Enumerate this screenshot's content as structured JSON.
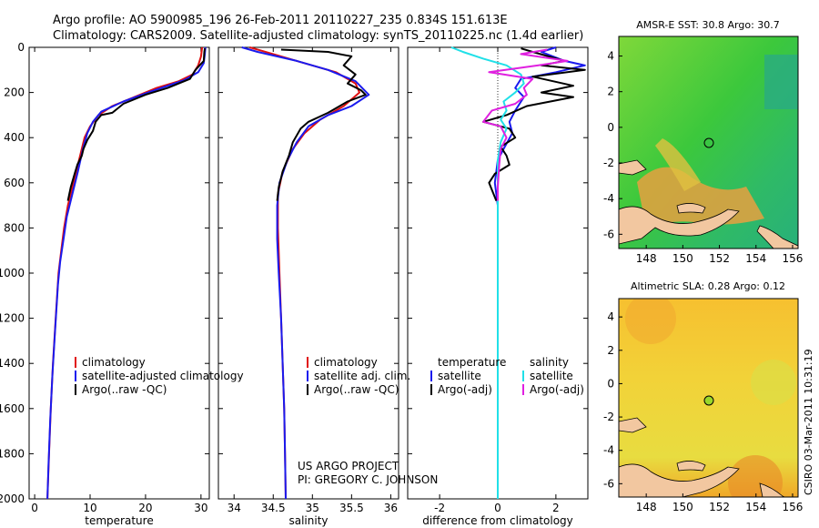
{
  "header": {
    "line1": "Argo profile: AO 5900985_196 26-Feb-2011 20110227_235 0.834S 151.613E",
    "line2": "Climatology: CARS2009. Satellite-adjusted climatology: synTS_20110225.nc (1.4d earlier)"
  },
  "credit": {
    "line1": "US ARGO PROJECT",
    "line2": "PI: GREGORY C. JOHNSON"
  },
  "side_stamp": "CSIRO 03-Mar-2011 10:31:19",
  "colors": {
    "climatology": "#e01010",
    "satellite": "#1a1aee",
    "argo": "#000000",
    "satellite_sal": "#20e0e8",
    "argo_sal": "#e020e0",
    "land": "#f2c7a0"
  },
  "chart_data": [
    {
      "type": "line",
      "xlabel": "temperature",
      "ylim": [
        2000,
        0
      ],
      "xlim": [
        -1,
        31.5
      ],
      "xticks": [
        0,
        10,
        20,
        30
      ],
      "yticks": [
        0,
        200,
        400,
        600,
        800,
        1000,
        1200,
        1400,
        1600,
        1800,
        2000
      ],
      "legend": [
        "climatology",
        "satellite-adjusted climatology",
        "Argo(..raw -QC)"
      ],
      "series": [
        {
          "name": "climatology",
          "color": "#e01010",
          "points": [
            [
              30.2,
              0
            ],
            [
              30.0,
              40
            ],
            [
              29.5,
              80
            ],
            [
              28.5,
              120
            ],
            [
              26,
              150
            ],
            [
              22,
              180
            ],
            [
              18,
              220
            ],
            [
              14,
              260
            ],
            [
              11.5,
              300
            ],
            [
              10,
              350
            ],
            [
              9,
              400
            ],
            [
              8,
              500
            ],
            [
              7,
              600
            ],
            [
              6,
              700
            ],
            [
              5.3,
              800
            ],
            [
              4.8,
              900
            ],
            [
              4.3,
              1000
            ],
            [
              3.8,
              1200
            ],
            [
              3.3,
              1400
            ],
            [
              2.9,
              1600
            ],
            [
              2.6,
              1800
            ],
            [
              2.3,
              2000
            ]
          ]
        },
        {
          "name": "satellite-adjusted climatology",
          "color": "#1a1aee",
          "points": [
            [
              30.8,
              0
            ],
            [
              30.7,
              30
            ],
            [
              30.5,
              70
            ],
            [
              29.5,
              110
            ],
            [
              27,
              145
            ],
            [
              21,
              195
            ],
            [
              16,
              240
            ],
            [
              12,
              285
            ],
            [
              10.5,
              330
            ],
            [
              9.5,
              380
            ],
            [
              8.7,
              450
            ],
            [
              7.8,
              550
            ],
            [
              6.8,
              650
            ],
            [
              5.8,
              750
            ],
            [
              5.2,
              850
            ],
            [
              4.6,
              950
            ],
            [
              4.2,
              1050
            ],
            [
              3.7,
              1250
            ],
            [
              3.2,
              1450
            ],
            [
              2.8,
              1650
            ],
            [
              2.5,
              1850
            ],
            [
              2.3,
              2000
            ]
          ]
        },
        {
          "name": "Argo(..raw -QC)",
          "color": "#000000",
          "points": [
            [
              30.7,
              5
            ],
            [
              30.6,
              20
            ],
            [
              30.5,
              60
            ],
            [
              29,
              100
            ],
            [
              28,
              140
            ],
            [
              24,
              180
            ],
            [
              20,
              210
            ],
            [
              16,
              250
            ],
            [
              14,
              290
            ],
            [
              12,
              300
            ],
            [
              11,
              330
            ],
            [
              10.5,
              370
            ],
            [
              9.5,
              410
            ],
            [
              8.8,
              450
            ],
            [
              8.5,
              480
            ],
            [
              7.7,
              520
            ],
            [
              7.2,
              560
            ],
            [
              6.5,
              620
            ],
            [
              6,
              680
            ]
          ]
        }
      ]
    },
    {
      "type": "line",
      "xlabel": "salinity",
      "ylim": [
        2000,
        0
      ],
      "xlim": [
        33.8,
        36.1
      ],
      "xticks": [
        34,
        34.5,
        35,
        35.5,
        36
      ],
      "legend": [
        "climatology",
        "satellite adj. clim.",
        "Argo(..raw -QC)"
      ],
      "series": [
        {
          "name": "climatology",
          "color": "#e01010",
          "points": [
            [
              34.2,
              0
            ],
            [
              34.5,
              30
            ],
            [
              34.9,
              70
            ],
            [
              35.3,
              110
            ],
            [
              35.55,
              160
            ],
            [
              35.6,
              200
            ],
            [
              35.4,
              260
            ],
            [
              35.1,
              320
            ],
            [
              34.9,
              380
            ],
            [
              34.75,
              450
            ],
            [
              34.62,
              550
            ],
            [
              34.56,
              650
            ],
            [
              34.56,
              800
            ],
            [
              34.58,
              1000
            ],
            [
              34.6,
              1200
            ],
            [
              34.62,
              1400
            ],
            [
              34.64,
              1600
            ],
            [
              34.65,
              1800
            ],
            [
              34.66,
              2000
            ]
          ]
        },
        {
          "name": "satellite adj. clim.",
          "color": "#1a1aee",
          "points": [
            [
              34.1,
              0
            ],
            [
              34.3,
              20
            ],
            [
              34.8,
              60
            ],
            [
              35.2,
              100
            ],
            [
              35.55,
              150
            ],
            [
              35.72,
              210
            ],
            [
              35.5,
              260
            ],
            [
              35.2,
              300
            ],
            [
              34.95,
              350
            ],
            [
              34.8,
              420
            ],
            [
              34.68,
              500
            ],
            [
              34.58,
              600
            ],
            [
              34.55,
              700
            ],
            [
              34.55,
              850
            ],
            [
              34.57,
              1000
            ],
            [
              34.6,
              1200
            ],
            [
              34.62,
              1400
            ],
            [
              34.64,
              1600
            ],
            [
              34.65,
              1800
            ],
            [
              34.66,
              2000
            ]
          ]
        },
        {
          "name": "Argo(..raw -QC)",
          "color": "#000000",
          "points": [
            [
              34.6,
              10
            ],
            [
              35.2,
              20
            ],
            [
              35.5,
              40
            ],
            [
              35.4,
              80
            ],
            [
              35.55,
              120
            ],
            [
              35.45,
              160
            ],
            [
              35.62,
              190
            ],
            [
              35.68,
              210
            ],
            [
              35.45,
              240
            ],
            [
              35.2,
              290
            ],
            [
              34.95,
              330
            ],
            [
              34.85,
              360
            ],
            [
              34.75,
              420
            ],
            [
              34.7,
              480
            ],
            [
              34.62,
              550
            ],
            [
              34.57,
              620
            ],
            [
              34.55,
              680
            ]
          ]
        }
      ]
    },
    {
      "type": "line",
      "xlabel": "difference from climatology",
      "ylim": [
        2000,
        0
      ],
      "xlim": [
        -3.1,
        3.1
      ],
      "xticks": [
        -2,
        0,
        2
      ],
      "legend": [
        "temperature",
        "satellite",
        "Argo(-adj)",
        "salinity",
        "satellite",
        "Argo(-adj)"
      ],
      "series": [
        {
          "name": "satellite",
          "color": "#1a1aee",
          "group": "temperature",
          "points": [
            [
              2,
              0
            ],
            [
              1.5,
              20
            ],
            [
              2.3,
              60
            ],
            [
              3,
              80
            ],
            [
              2,
              110
            ],
            [
              0.8,
              140
            ],
            [
              0.6,
              180
            ],
            [
              0.9,
              220
            ],
            [
              0.6,
              280
            ],
            [
              0.4,
              330
            ],
            [
              0.5,
              380
            ],
            [
              0.2,
              450
            ],
            [
              0,
              500
            ],
            [
              -0.1,
              600
            ],
            [
              0,
              700
            ],
            [
              0,
              800
            ],
            [
              0,
              1000
            ],
            [
              0,
              1200
            ],
            [
              0,
              1500
            ],
            [
              0,
              2000
            ]
          ]
        },
        {
          "name": "Argo(-adj)",
          "color": "#000000",
          "group": "temperature",
          "points": [
            [
              0.8,
              5
            ],
            [
              1.2,
              20
            ],
            [
              2.3,
              60
            ],
            [
              1.5,
              80
            ],
            [
              3,
              100
            ],
            [
              1.2,
              130
            ],
            [
              2.6,
              170
            ],
            [
              1.5,
              200
            ],
            [
              2.6,
              220
            ],
            [
              1.0,
              260
            ],
            [
              0.3,
              300
            ],
            [
              -0.5,
              330
            ],
            [
              0.4,
              360
            ],
            [
              0.6,
              400
            ],
            [
              0.1,
              440
            ],
            [
              0.3,
              480
            ],
            [
              0.4,
              520
            ],
            [
              -0.1,
              560
            ],
            [
              -0.3,
              600
            ],
            [
              -0.05,
              680
            ]
          ]
        },
        {
          "name": "satellite",
          "color": "#20e0e8",
          "group": "salinity",
          "points": [
            [
              -1.6,
              0
            ],
            [
              -1.2,
              20
            ],
            [
              -0.5,
              50
            ],
            [
              0.3,
              80
            ],
            [
              0.8,
              120
            ],
            [
              0.9,
              160
            ],
            [
              0.6,
              200
            ],
            [
              0.2,
              240
            ],
            [
              0.3,
              280
            ],
            [
              0.1,
              320
            ],
            [
              0.3,
              360
            ],
            [
              0.1,
              420
            ],
            [
              0,
              500
            ],
            [
              0,
              600
            ],
            [
              0,
              800
            ],
            [
              0,
              1000
            ],
            [
              0,
              1400
            ],
            [
              0,
              2000
            ]
          ]
        },
        {
          "name": "Argo(-adj)",
          "color": "#e020e0",
          "group": "salinity",
          "points": [
            [
              1.7,
              10
            ],
            [
              0.8,
              30
            ],
            [
              2.4,
              60
            ],
            [
              1.4,
              80
            ],
            [
              -0.3,
              110
            ],
            [
              1.2,
              140
            ],
            [
              0.9,
              180
            ],
            [
              1.0,
              210
            ],
            [
              0.6,
              250
            ],
            [
              -0.2,
              280
            ],
            [
              -0.5,
              330
            ],
            [
              0.1,
              350
            ],
            [
              0.3,
              400
            ],
            [
              0.1,
              450
            ],
            [
              0.05,
              520
            ],
            [
              0,
              620
            ],
            [
              0,
              680
            ]
          ]
        }
      ]
    },
    {
      "type": "heatmap",
      "title": "AMSR-E SST: 30.8 Argo: 30.7",
      "xlim": [
        146.5,
        156.3
      ],
      "ylim": [
        -6.8,
        5.1
      ],
      "xticks": [
        148,
        150,
        152,
        154,
        156
      ],
      "yticks": [
        4,
        2,
        0,
        -2,
        -4,
        -6
      ],
      "marker": [
        151.613,
        -0.834
      ]
    },
    {
      "type": "heatmap",
      "title": "Altimetric SLA: 0.28 Argo: 0.12",
      "xlim": [
        146.5,
        156.3
      ],
      "ylim": [
        -6.8,
        5.1
      ],
      "xticks": [
        148,
        150,
        152,
        154,
        156
      ],
      "yticks": [
        4,
        2,
        0,
        -2,
        -4,
        -6
      ],
      "marker": [
        151.613,
        -0.834
      ]
    }
  ]
}
